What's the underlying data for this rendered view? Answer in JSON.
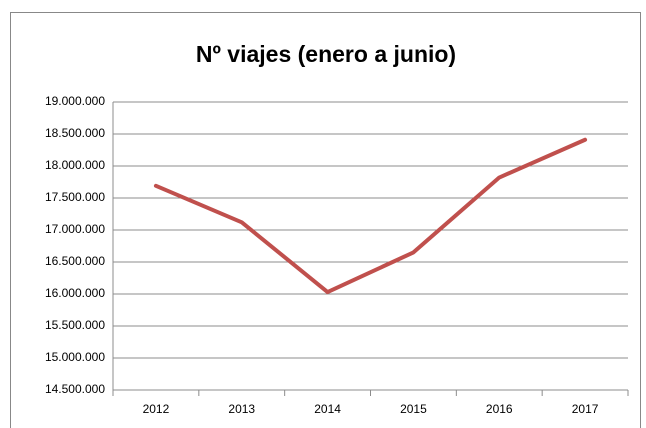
{
  "chart_data": {
    "type": "line",
    "title": "Nº viajes (enero a junio)",
    "categories": [
      "2012",
      "2013",
      "2014",
      "2015",
      "2016",
      "2017"
    ],
    "series": [
      {
        "name": "Nº viajes",
        "color": "#c0504d",
        "values": [
          17690000,
          17120000,
          16030000,
          16650000,
          17820000,
          18410000
        ]
      }
    ],
    "ylim": [
      14500000,
      19000000
    ],
    "yticks": [
      {
        "value": 14500000,
        "label": "14.500.000"
      },
      {
        "value": 15000000,
        "label": "15.000.000"
      },
      {
        "value": 15500000,
        "label": "15.500.000"
      },
      {
        "value": 16000000,
        "label": "16.000.000"
      },
      {
        "value": 16500000,
        "label": "16.500.000"
      },
      {
        "value": 17000000,
        "label": "17.000.000"
      },
      {
        "value": 17500000,
        "label": "17.500.000"
      },
      {
        "value": 18000000,
        "label": "18.000.000"
      },
      {
        "value": 18500000,
        "label": "18.500.000"
      },
      {
        "value": 19000000,
        "label": "19.000.000"
      }
    ],
    "grid": true,
    "legend": false
  }
}
